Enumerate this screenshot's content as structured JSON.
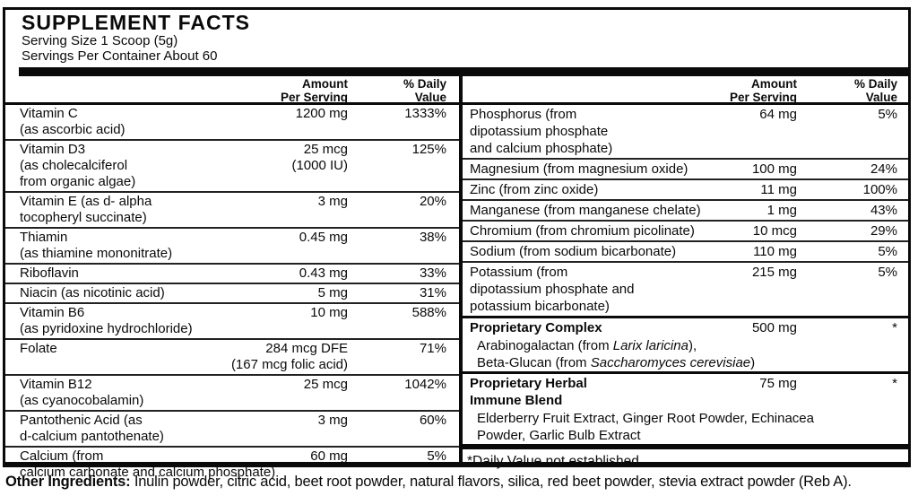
{
  "title": "SUPPLEMENT FACTS",
  "serving_size": "Serving Size 1 Scoop (5g)",
  "servings_per_container": "Servings Per Container About 60",
  "headers": {
    "amount": [
      "Amount",
      "Per Serving"
    ],
    "dv": [
      "% Daily",
      "Value"
    ]
  },
  "left_rows": [
    {
      "name_lines": [
        "Vitamin C",
        "(as ascorbic acid)"
      ],
      "amount_lines": [
        "1200 mg"
      ],
      "dv": "1333%"
    },
    {
      "name_lines": [
        "Vitamin D3",
        "(as cholecalciferol",
        "from organic algae)"
      ],
      "amount_lines": [
        "25 mcg",
        "(1000 IU)"
      ],
      "dv": "125%"
    },
    {
      "name_lines": [
        "Vitamin E (as d- alpha",
        "tocopheryl succinate)"
      ],
      "amount_lines": [
        "3 mg"
      ],
      "dv": "20%"
    },
    {
      "name_lines": [
        "Thiamin",
        "(as thiamine mononitrate)"
      ],
      "amount_lines": [
        "0.45 mg"
      ],
      "dv": "38%"
    },
    {
      "name_lines": [
        "Riboflavin"
      ],
      "amount_lines": [
        "0.43 mg"
      ],
      "dv": "33%"
    },
    {
      "name_lines": [
        "Niacin (as nicotinic acid)"
      ],
      "amount_lines": [
        "5 mg"
      ],
      "dv": "31%"
    },
    {
      "name_lines": [
        "Vitamin B6",
        "(as pyridoxine hydrochloride)"
      ],
      "amount_lines": [
        "10 mg"
      ],
      "dv": "588%"
    },
    {
      "name_lines": [
        "Folate"
      ],
      "amount_lines": [
        "284 mcg DFE",
        "(167 mcg folic acid)"
      ],
      "dv": "71%"
    },
    {
      "name_lines": [
        "Vitamin B12",
        "(as cyanocobalamin)"
      ],
      "amount_lines": [
        "25 mcg"
      ],
      "dv": "1042%"
    },
    {
      "name_lines": [
        "Pantothenic Acid (as",
        "d-calcium pantothenate)"
      ],
      "amount_lines": [
        "3 mg"
      ],
      "dv": "60%"
    },
    {
      "name_lines": [
        "Calcium (from",
        "calcium carbonate and calcium phosphate)"
      ],
      "amount_lines": [
        "60 mg"
      ],
      "dv": "5%"
    }
  ],
  "right_rows": [
    {
      "name_lines": [
        "Phosphorus (from",
        "dipotassium phosphate",
        "and calcium phosphate)"
      ],
      "amount_lines": [
        "64 mg"
      ],
      "dv": "5%"
    },
    {
      "name_lines": [
        "Magnesium (from magnesium oxide)"
      ],
      "amount_lines": [
        "100 mg"
      ],
      "dv": "24%"
    },
    {
      "name_lines": [
        "Zinc (from zinc oxide)"
      ],
      "amount_lines": [
        "11 mg"
      ],
      "dv": "100%"
    },
    {
      "name_lines": [
        "Manganese (from manganese chelate)"
      ],
      "amount_lines": [
        "1 mg"
      ],
      "dv": "43%"
    },
    {
      "name_lines": [
        "Chromium (from chromium picolinate)"
      ],
      "amount_lines": [
        "10 mcg"
      ],
      "dv": "29%"
    },
    {
      "name_lines": [
        "Sodium (from sodium bicarbonate)"
      ],
      "amount_lines": [
        "110 mg"
      ],
      "dv": "5%"
    },
    {
      "name_lines": [
        "Potassium (from",
        "dipotassium phosphate and",
        "potassium bicarbonate)"
      ],
      "amount_lines": [
        "215 mg"
      ],
      "dv": "5%"
    }
  ],
  "proprietary_sections": [
    {
      "name_lines": [
        "Proprietary Complex"
      ],
      "amount": "500 mg",
      "dv": "*",
      "sub_lines": [
        {
          "pre": "Arabinogalactan (from ",
          "italic": "Larix laricina",
          "post": "),"
        },
        {
          "pre": "Beta-Glucan (from ",
          "italic": "Saccharomyces cerevisiae",
          "post": ")"
        }
      ]
    },
    {
      "name_lines": [
        "Proprietary Herbal",
        "Immune Blend"
      ],
      "amount": "75 mg",
      "dv": "*",
      "sub_lines": [
        {
          "pre": "Elderberry Fruit Extract, Ginger Root Powder, Echinacea"
        },
        {
          "pre": "Powder, Garlic Bulb Extract"
        }
      ]
    }
  ],
  "footnote": "*Daily Value not established",
  "other_ingredients": {
    "label": "Other Ingredients:",
    "text": "Inulin powder, citric acid, beet root powder, natural flavors, silica, red beet powder, stevia extract powder (Reb A)."
  },
  "colors": {
    "ink": "#0a0a0a",
    "paper": "#ffffff"
  }
}
